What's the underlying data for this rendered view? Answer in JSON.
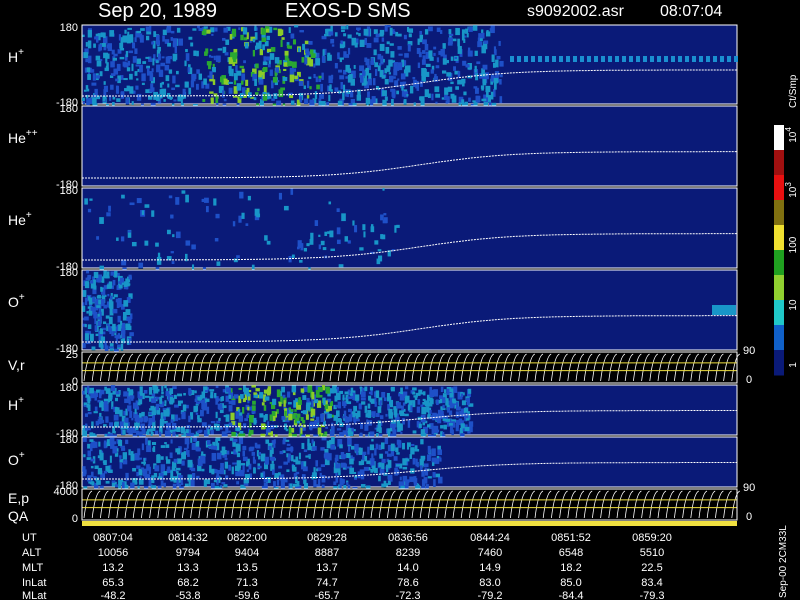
{
  "header": {
    "date": "Sep 20, 1989",
    "instrument": "EXOS-D SMS",
    "file": "s9092002.asr",
    "time": "08:07:04"
  },
  "panels": [
    {
      "label": "H",
      "sup": "+",
      "ticks": [
        "180",
        "-180"
      ]
    },
    {
      "label": "He",
      "sup": "++",
      "ticks": [
        "180",
        "-180"
      ]
    },
    {
      "label": "He",
      "sup": "+",
      "ticks": [
        "180",
        "-180"
      ]
    },
    {
      "label": "O",
      "sup": "+",
      "ticks": [
        "180",
        "-180"
      ]
    },
    {
      "label": "V,r",
      "ticks": [
        "25",
        "0"
      ],
      "right_ticks": [
        "90",
        "0"
      ]
    },
    {
      "label": "H",
      "sup": "+",
      "ticks": [
        "180",
        "-180"
      ]
    },
    {
      "label": "O",
      "sup": "+",
      "ticks": [
        "180",
        "-180"
      ]
    },
    {
      "label": "E,p",
      "label2": "QA",
      "ticks": [
        "4000",
        "0"
      ],
      "right_ticks": [
        "90",
        "0"
      ]
    }
  ],
  "colorbar": {
    "title": "Ct/Smp",
    "ticks": [
      {
        "base": "10",
        "exp": "4"
      },
      {
        "base": "10",
        "exp": "3"
      },
      "100",
      "10",
      "1"
    ]
  },
  "footer": {
    "rows": [
      {
        "label": "UT",
        "values": [
          "0807:04",
          "0814:32",
          "0822:00",
          "0829:28",
          "0836:56",
          "0844:24",
          "0851:52",
          "0859:20"
        ]
      },
      {
        "label": "ALT",
        "values": [
          "10056",
          "9794",
          "9404",
          "8887",
          "8239",
          "7460",
          "6548",
          "5510"
        ]
      },
      {
        "label": "MLT",
        "values": [
          "13.2",
          "13.3",
          "13.5",
          "13.7",
          "14.0",
          "14.9",
          "18.2",
          "22.5"
        ]
      },
      {
        "label": "InLat",
        "values": [
          "65.3",
          "68.2",
          "71.3",
          "74.7",
          "78.6",
          "83.0",
          "85.0",
          "83.4"
        ]
      },
      {
        "label": "MLat",
        "values": [
          "-48.2",
          "-53.8",
          "-59.6",
          "-65.7",
          "-72.3",
          "-79.2",
          "-84.4",
          "-79.3"
        ]
      }
    ]
  },
  "side_note": "Sep-00 2CM33L"
}
